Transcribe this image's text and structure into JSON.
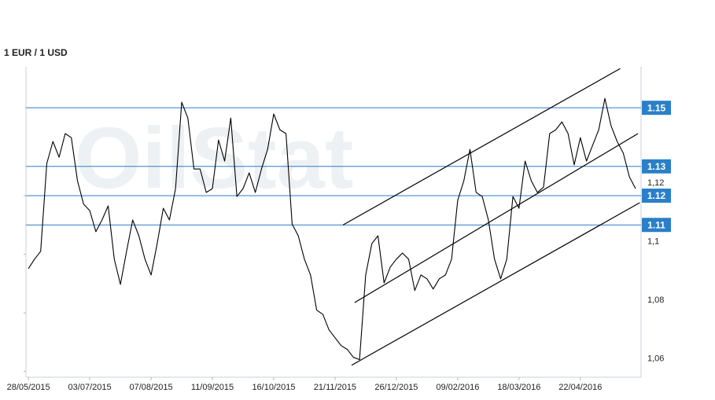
{
  "chart_data": {
    "type": "line",
    "title": "1 EUR / 1 USD",
    "watermark": "OilStat",
    "color": "#000000",
    "values": [
      1.0951,
      1.0983,
      1.101,
      1.131,
      1.1385,
      1.1331,
      1.1412,
      1.1398,
      1.1251,
      1.1171,
      1.1149,
      1.1077,
      1.1117,
      1.1165,
      1.0983,
      1.0897,
      1.101,
      1.1117,
      1.1063,
      1.0983,
      1.0929,
      1.1036,
      1.1157,
      1.1117,
      1.1224,
      1.1519,
      1.1465,
      1.1291,
      1.1291,
      1.1211,
      1.1224,
      1.139,
      1.1318,
      1.1465,
      1.1197,
      1.1224,
      1.1278,
      1.1211,
      1.1291,
      1.1358,
      1.1479,
      1.1425,
      1.1412,
      1.1103,
      1.1063,
      1.0983,
      1.0929,
      1.0809,
      1.0795,
      1.0742,
      1.0715,
      1.0688,
      1.0675,
      1.0648,
      1.064,
      1.0929,
      1.1036,
      1.1063,
      1.0902,
      1.0956,
      1.0983,
      1.1004,
      1.0983,
      1.0876,
      1.0929,
      1.0916,
      1.0881,
      1.0916,
      1.0929,
      1.0983,
      1.1184,
      1.1251,
      1.1358,
      1.1211,
      1.1197,
      1.1117,
      1.0983,
      1.0916,
      1.0983,
      1.1197,
      1.1157,
      1.1318,
      1.1251,
      1.1211,
      1.1229,
      1.1412,
      1.1425,
      1.1452,
      1.1412,
      1.1305,
      1.1398,
      1.1318,
      1.1372,
      1.1425,
      1.1532,
      1.1439,
      1.1385,
      1.1345,
      1.1264,
      1.1224
    ],
    "xlim": [
      -0.4,
      99.9
    ],
    "xticks": [
      {
        "value": 0,
        "label": "28/05/2015"
      },
      {
        "value": 10,
        "label": "03/07/2015"
      },
      {
        "value": 20,
        "label": "07/08/2015"
      },
      {
        "value": 30,
        "label": "11/09/2015"
      },
      {
        "value": 40,
        "label": "16/10/2015"
      },
      {
        "value": 50,
        "label": "21/11/2015"
      },
      {
        "value": 60,
        "label": "26/12/2015"
      },
      {
        "value": 70,
        "label": "09/02/2016"
      },
      {
        "value": 80,
        "label": "18/03/2016"
      },
      {
        "value": 90,
        "label": "22/04/2016"
      }
    ],
    "ylim": [
      1.058,
      1.164
    ],
    "yticks": [
      {
        "value": 1.06,
        "label": "1,06"
      },
      {
        "value": 1.08,
        "label": "1,08"
      },
      {
        "value": 1.1,
        "label": "1,1"
      },
      {
        "value": 1.12,
        "label": "1,12"
      }
    ],
    "levels": {
      "color": "#2a7fc8",
      "values": [
        1.15,
        1.13,
        1.12,
        1.11
      ]
    },
    "trend_lines": [
      {
        "x": [
          51.3,
          96.5
        ],
        "values": [
          1.11,
          1.1634
        ]
      },
      {
        "x": [
          53.2,
          99.4
        ],
        "values": [
          1.0835,
          1.1412
        ]
      },
      {
        "x": [
          52.7,
          99.7
        ],
        "values": [
          1.0621,
          1.1176
        ]
      }
    ]
  }
}
